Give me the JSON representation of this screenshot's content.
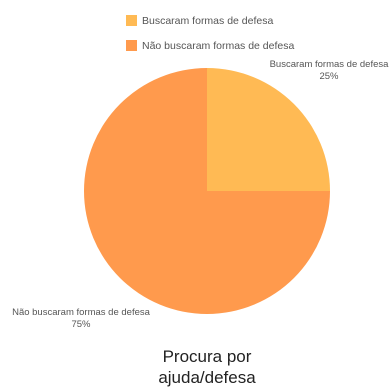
{
  "chart_data": {
    "type": "pie",
    "title_lines": [
      "Procura por",
      "ajuda/defesa"
    ],
    "legend_position": "top",
    "slices": [
      {
        "label": "Buscaram formas de defesa",
        "value": 25,
        "value_label": "25%",
        "color": "#FFBA54"
      },
      {
        "label": "Não buscaram formas de defesa",
        "value": 75,
        "value_label": "75%",
        "color": "#FF9A4D"
      }
    ]
  }
}
